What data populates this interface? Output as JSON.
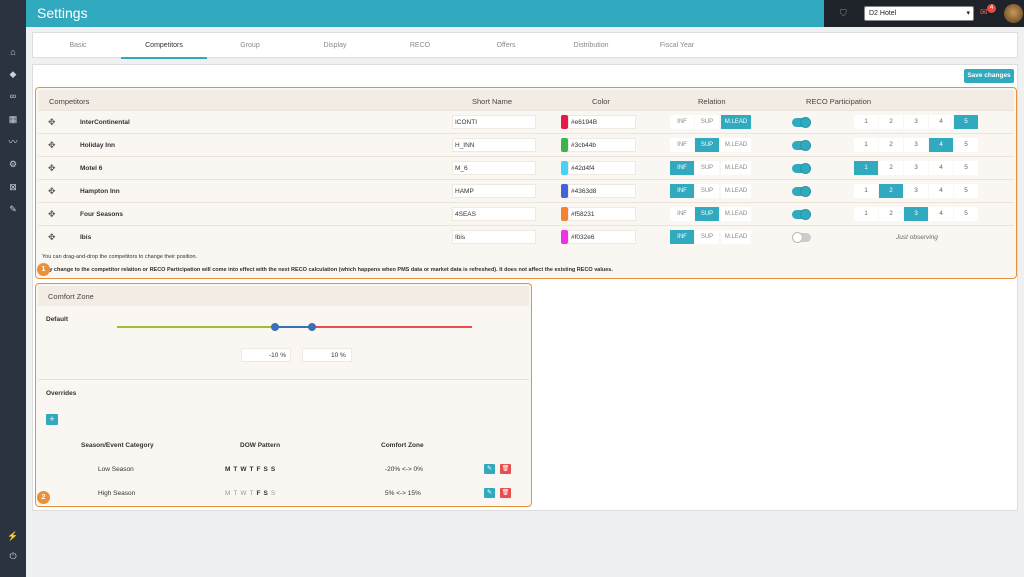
{
  "header": {
    "title": "Settings",
    "hotel": "D2 Hotel",
    "notifications": "4"
  },
  "sidebar": {
    "icons": [
      "home-icon",
      "diamond-icon",
      "binoculars-icon",
      "calendar-icon",
      "chart-icon",
      "gear-icon",
      "network-icon",
      "wrench-icon",
      "plug-icon",
      "power-icon"
    ]
  },
  "tabs": [
    "Basic",
    "Competitors",
    "Group",
    "Display",
    "RECO",
    "Offers",
    "Distribution",
    "Fiscal Year"
  ],
  "active_tab": "Competitors",
  "save_label": "Save changes",
  "competitors": {
    "headers": {
      "name": "Competitors",
      "short": "Short Name",
      "color": "Color",
      "relation": "Relation",
      "reco": "RECO Participation"
    },
    "relation_options": [
      "INF",
      "SUP",
      "M.LEAD"
    ],
    "participation_options": [
      "1",
      "2",
      "3",
      "4",
      "5"
    ],
    "rows": [
      {
        "name": "InterContinental",
        "short": "ICONTI",
        "color": "#e6194B",
        "relation": "M.LEAD",
        "enabled": true,
        "participation": "5"
      },
      {
        "name": "Holiday Inn",
        "short": "H_INN",
        "color": "#3cb44b",
        "relation": "SUP",
        "enabled": true,
        "participation": "4"
      },
      {
        "name": "Motel 6",
        "short": "M_6",
        "color": "#42d4f4",
        "relation": "INF",
        "enabled": true,
        "participation": "1"
      },
      {
        "name": "Hampton Inn",
        "short": "HAMP",
        "color": "#4363d8",
        "relation": "INF",
        "enabled": true,
        "participation": "2"
      },
      {
        "name": "Four Seasons",
        "short": "4SEAS",
        "color": "#f58231",
        "relation": "SUP",
        "enabled": true,
        "participation": "3"
      },
      {
        "name": "Ibis",
        "short": "Ibis",
        "color": "#f032e6",
        "relation": "INF",
        "enabled": false,
        "participation": null,
        "observing": "Just observing"
      }
    ],
    "note1": "You can drag-and-drop the competitors to change their position.",
    "note2": "Any change to the competitor relation or RECO Participation will come into effect with the next RECO calculation (which happens when PMS data or market data is refreshed). It does not affect the existing RECO values."
  },
  "callouts": [
    "1",
    "2"
  ],
  "comfort_zone": {
    "title": "Comfort Zone",
    "default_label": "Default",
    "low_value": "-10",
    "high_value": "10",
    "unit": "%",
    "overrides_label": "Overrides",
    "add_icon": "plus-icon",
    "table_headers": [
      "Season/Event Category",
      "DOW Pattern",
      "Comfort Zone"
    ],
    "rows": [
      {
        "category": "Low Season",
        "dow": [
          [
            "M",
            true
          ],
          [
            "T",
            true
          ],
          [
            "W",
            true
          ],
          [
            "T",
            true
          ],
          [
            "F",
            true
          ],
          [
            "S",
            true
          ],
          [
            "S",
            true
          ]
        ],
        "zone": "-20% <-> 0%"
      },
      {
        "category": "High Season",
        "dow": [
          [
            "M",
            false
          ],
          [
            "T",
            false
          ],
          [
            "W",
            false
          ],
          [
            "T",
            false
          ],
          [
            "F",
            true
          ],
          [
            "S",
            true
          ],
          [
            "S",
            false
          ]
        ],
        "zone": "5% <-> 15%"
      }
    ]
  },
  "colors": {
    "accent": "#31a9be",
    "highlight": "#e8913a",
    "danger": "#e94e4e",
    "sidebar": "#2b3340"
  }
}
